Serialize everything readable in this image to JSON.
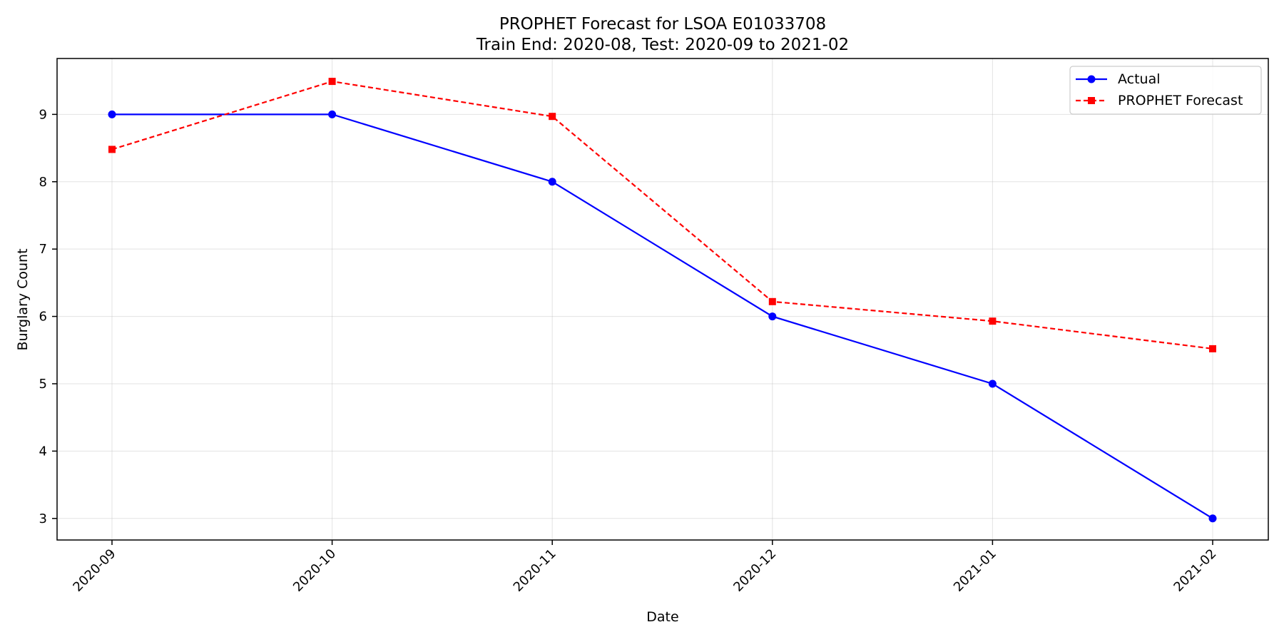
{
  "chart_data": {
    "type": "line",
    "title_line1": "PROPHET Forecast for LSOA E01033708",
    "title_line2": "Train End: 2020-08, Test: 2020-09 to 2021-02",
    "xlabel": "Date",
    "ylabel": "Burglary Count",
    "x": [
      "2020-09",
      "2020-10",
      "2020-11",
      "2020-12",
      "2021-01",
      "2021-02"
    ],
    "y_ticks": [
      3,
      4,
      5,
      6,
      7,
      8,
      9
    ],
    "ylim": [
      2.68,
      9.83
    ],
    "grid": true,
    "legend_position": "top-right",
    "series": [
      {
        "name": "Actual",
        "values": [
          9,
          9,
          8,
          6,
          5,
          3
        ],
        "color": "#0000ff",
        "marker": "circle",
        "linestyle": "solid"
      },
      {
        "name": "PROPHET Forecast",
        "values": [
          8.48,
          9.49,
          8.97,
          6.22,
          5.93,
          5.52
        ],
        "color": "#ff0000",
        "marker": "square",
        "linestyle": "dashed"
      }
    ]
  }
}
